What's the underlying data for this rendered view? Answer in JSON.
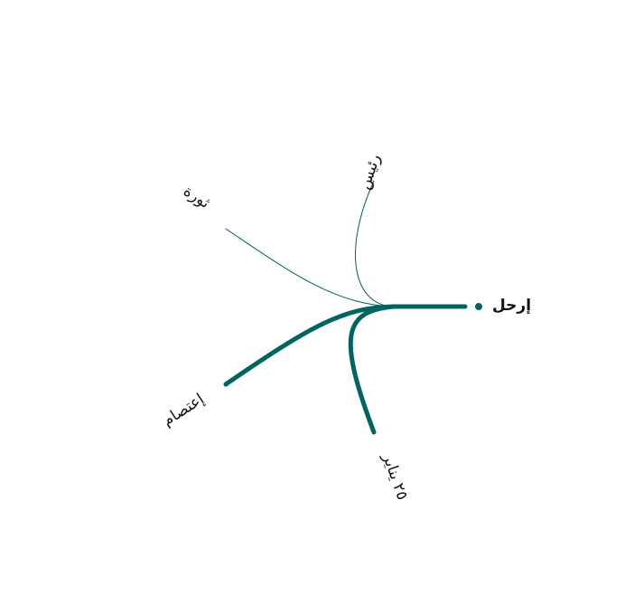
{
  "diagram": {
    "type": "word-tree",
    "edge_color": "#006461",
    "root": {
      "label": "إرحل"
    },
    "branches": [
      {
        "id": "raees",
        "label": "رئيس",
        "weight": "thin"
      },
      {
        "id": "thawra",
        "label": "ثورة",
        "weight": "thin"
      },
      {
        "id": "iatisam",
        "label": "إعتصام",
        "weight": "thick"
      },
      {
        "id": "yanayir",
        "label": "٢٥ يناير",
        "weight": "thick"
      }
    ]
  }
}
